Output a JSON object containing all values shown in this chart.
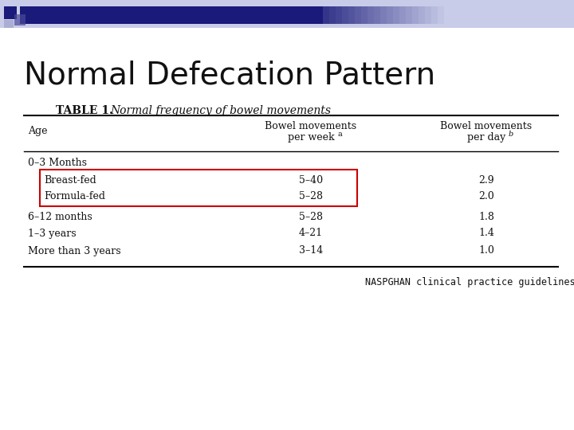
{
  "title": "Normal Defecation Pattern",
  "table_title_bold": "TABLE 1.",
  "table_title_italic": "Normal frequency of bowel movements",
  "rows": [
    [
      "0–3 Months",
      "",
      ""
    ],
    [
      "    Breast-fed",
      "5–40",
      "2.9"
    ],
    [
      "    Formula-fed",
      "5–28",
      "2.0"
    ],
    [
      "6–12 months",
      "5–28",
      "1.8"
    ],
    [
      "1–3 years",
      "4–21",
      "1.4"
    ],
    [
      "More than 3 years",
      "3–14",
      "1.0"
    ]
  ],
  "footer": "NASPGHAN clinical practice guidelines",
  "bg_color": "#ffffff",
  "title_color": "#111111",
  "table_text_color": "#111111",
  "red_box_color": "#cc0000",
  "deco_dark": "#1a1a7a",
  "deco_mid": "#4a4a9a",
  "deco_light": "#9090c0",
  "deco_bg": "#c8cce8"
}
